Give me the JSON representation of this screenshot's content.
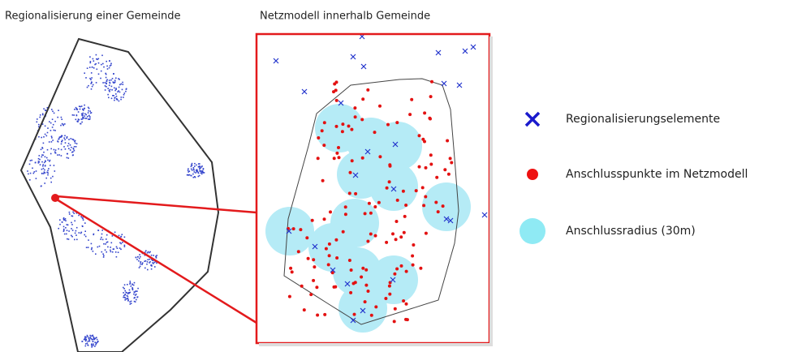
{
  "titles": {
    "left": "Regionalisierung  einer Gemeinde",
    "right": "Netzmodell  innerhalb  Gemeinde"
  },
  "legend": {
    "items": [
      {
        "label": "Regionalisierungselemente"
      },
      {
        "label": "Anschlusspunkte  im Netzmodell"
      },
      {
        "label": "Anschlussradius  (30m)"
      }
    ]
  }
}
